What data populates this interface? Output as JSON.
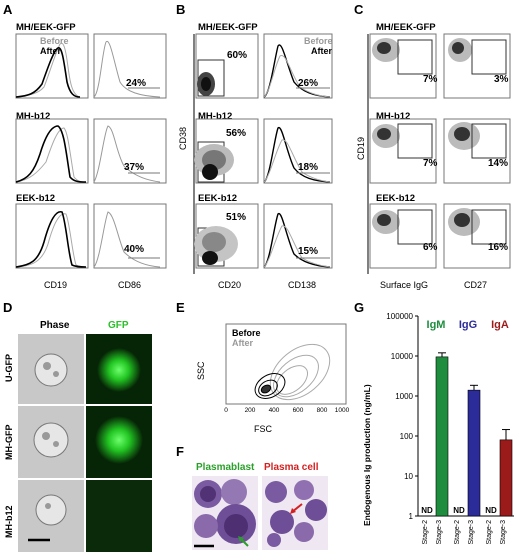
{
  "panel_a": {
    "letter": "A",
    "legend_before": "Before",
    "legend_after": "After",
    "rows": [
      {
        "label": "MH/EEK-GFP",
        "pct": "24%"
      },
      {
        "label": "MH-b12",
        "pct": "37%"
      },
      {
        "label": "EEK-b12",
        "pct": "40%"
      }
    ],
    "xlabels": [
      "CD19",
      "CD86"
    ]
  },
  "panel_b": {
    "letter": "B",
    "legend_before": "Before",
    "legend_after": "After",
    "ylabel": "CD38",
    "rows": [
      {
        "label": "MH/EEK-GFP",
        "pct_left": "60%",
        "pct_right": "26%"
      },
      {
        "label": "MH-b12",
        "pct_left": "56%",
        "pct_right": "18%"
      },
      {
        "label": "EEK-b12",
        "pct_left": "51%",
        "pct_right": "15%"
      }
    ],
    "xlabels": [
      "CD20",
      "CD138"
    ]
  },
  "panel_c": {
    "letter": "C",
    "ylabel": "CD19",
    "rows": [
      {
        "label": "MH/EEK-GFP",
        "pct_left": "7%",
        "pct_right": "3%"
      },
      {
        "label": "MH-b12",
        "pct_left": "7%",
        "pct_right": "14%"
      },
      {
        "label": "EEK-b12",
        "pct_left": "6%",
        "pct_right": "16%"
      }
    ],
    "xlabels": [
      "Surface IgG",
      "CD27"
    ]
  },
  "panel_d": {
    "letter": "D",
    "col_phase": "Phase",
    "col_gfp": "GFP",
    "rows": [
      "U-GFP",
      "MH-GFP",
      "MH-b12"
    ]
  },
  "panel_e": {
    "letter": "E",
    "legend_before": "Before",
    "legend_after": "After",
    "ylabel": "SSC",
    "xlabel": "FSC",
    "xticks": [
      "0",
      "200",
      "400",
      "600",
      "800",
      "1000"
    ]
  },
  "panel_f": {
    "letter": "F",
    "left_label": "Plasmablast",
    "right_label": "Plasma cell"
  },
  "panel_g": {
    "letter": "G",
    "ylabel": "Endogenous Ig production (ng/mL)",
    "yticks": [
      "100000",
      "10000",
      "1000",
      "100",
      "10",
      "1"
    ],
    "groups": [
      "IgM",
      "IgG",
      "IgA"
    ],
    "stage_labels": [
      "Stage-2",
      "Stage-3"
    ],
    "nd": "ND",
    "colors": {
      "IgM": "#1e8e3e",
      "IgG": "#2b2b9a",
      "IgA": "#9b1b1b"
    }
  },
  "chart_data": {
    "type": "bar",
    "title": "",
    "ylabel": "Endogenous Ig production (ng/mL)",
    "yscale": "log",
    "ylim": [
      1,
      100000
    ],
    "categories": [
      "Stage-2",
      "Stage-3"
    ],
    "series": [
      {
        "name": "IgM",
        "values": [
          null,
          9500
        ],
        "errors": [
          null,
          2500
        ],
        "color": "#1e8e3e"
      },
      {
        "name": "IgG",
        "values": [
          null,
          1400
        ],
        "errors": [
          null,
          450
        ],
        "color": "#2b2b9a"
      },
      {
        "name": "IgA",
        "values": [
          null,
          80
        ],
        "errors": [
          null,
          65
        ],
        "color": "#9b1b1b"
      }
    ]
  }
}
